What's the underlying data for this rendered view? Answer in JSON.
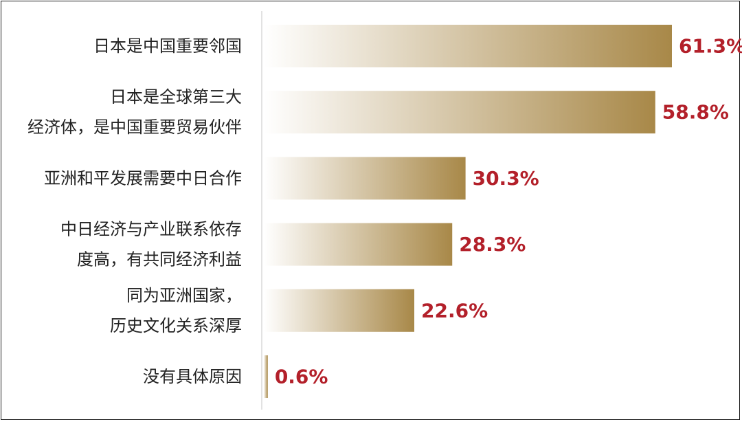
{
  "chart_data": {
    "type": "bar",
    "orientation": "horizontal",
    "categories": [
      [
        "日本是中国重要邻国"
      ],
      [
        "日本是全球第三大",
        "经济体，是中国重要贸易伙伴"
      ],
      [
        "亚洲和平发展需要中日合作"
      ],
      [
        "中日经济与产业联系依存",
        "度高，有共同经济利益"
      ],
      [
        "同为亚洲国家，",
        "历史文化关系深厚"
      ],
      [
        "没有具体原因"
      ]
    ],
    "values": [
      61.3,
      58.8,
      30.3,
      28.3,
      22.6,
      0.6
    ],
    "value_labels": [
      "61.3%",
      "58.8%",
      "30.3%",
      "28.3%",
      "22.6%",
      "0.6%"
    ],
    "unit": "%",
    "xlim": [
      0,
      61.3
    ],
    "grid": false,
    "legend": "none",
    "colors": {
      "bar_start": "#ffffff",
      "bar_end": "#a88848",
      "value_text": "#b3202a",
      "axis_line": "#d9d9d9",
      "label_text": "#222222",
      "frame": "#1a1a1a"
    }
  }
}
